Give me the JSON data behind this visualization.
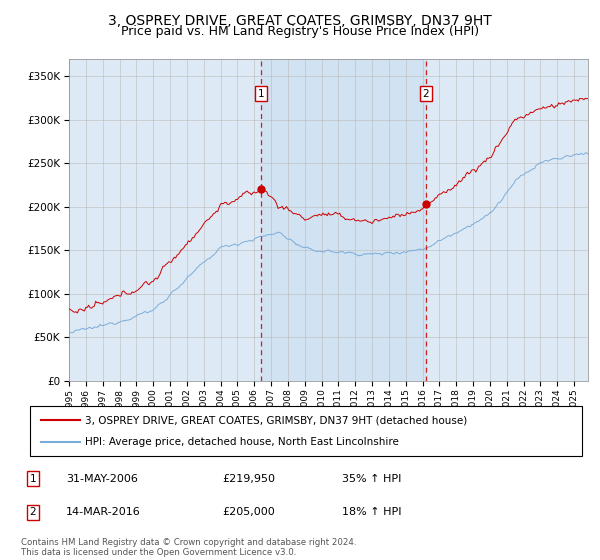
{
  "title": "3, OSPREY DRIVE, GREAT COATES, GRIMSBY, DN37 9HT",
  "subtitle": "Price paid vs. HM Land Registry's House Price Index (HPI)",
  "ylim": [
    0,
    370000
  ],
  "xlim_start": 1995.0,
  "xlim_end": 2025.83,
  "marker1_x": 2006.42,
  "marker1_y": 219950,
  "marker1_label": "31-MAY-2006",
  "marker1_price": "£219,950",
  "marker1_hpi": "35% ↑ HPI",
  "marker2_x": 2016.21,
  "marker2_y": 205000,
  "marker2_label": "14-MAR-2016",
  "marker2_price": "£205,000",
  "marker2_hpi": "18% ↑ HPI",
  "red_line_color": "#cc0000",
  "blue_line_color": "#7aacda",
  "vline_color": "#cc2222",
  "marker_box_color": "#cc0000",
  "background_plot": "#ddeaf5",
  "shade_color": "#c8dff0",
  "legend1": "3, OSPREY DRIVE, GREAT COATES, GRIMSBY, DN37 9HT (detached house)",
  "legend2": "HPI: Average price, detached house, North East Lincolnshire",
  "footnote": "Contains HM Land Registry data © Crown copyright and database right 2024.\nThis data is licensed under the Open Government Licence v3.0.",
  "title_fontsize": 10,
  "subtitle_fontsize": 9,
  "tick_fontsize": 8
}
